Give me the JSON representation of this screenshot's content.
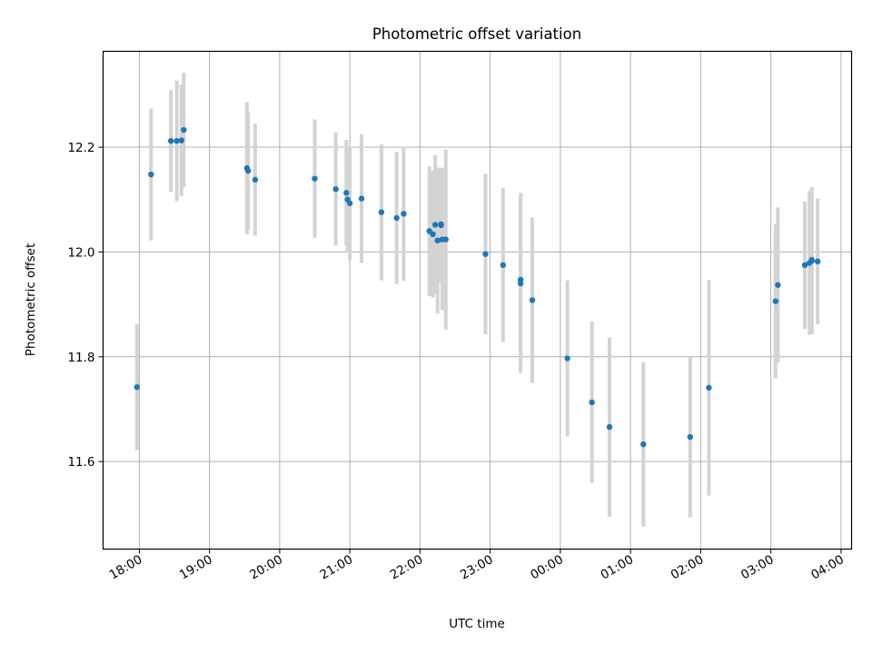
{
  "chart_data": {
    "type": "scatter",
    "title": "Photometric offset variation",
    "xlabel": "UTC time",
    "ylabel": "Photometric offset",
    "grid": true,
    "x_is_time": true,
    "xlim": [
      "17:29",
      "04:09"
    ],
    "ylim": [
      11.433,
      12.383
    ],
    "xticks": [
      "18:00",
      "19:00",
      "20:00",
      "21:00",
      "22:00",
      "23:00",
      "00:00",
      "01:00",
      "02:00",
      "03:00",
      "04:00"
    ],
    "yticks": [
      11.6,
      11.8,
      12.0,
      12.2
    ],
    "ytick_labels": [
      "11.6",
      "11.8",
      "12.0",
      "12.2"
    ],
    "marker_color": "#1f77b4",
    "errorbar_color": "#d3d3d3",
    "series": [
      {
        "x": [
          "17:58",
          "18:10",
          "18:27",
          "18:32",
          "18:36",
          "18:38",
          "19:32",
          "19:33",
          "19:39",
          "20:30",
          "20:48",
          "20:57",
          "20:58",
          "21:00",
          "21:10",
          "21:27",
          "21:40",
          "21:46",
          "22:08",
          "22:11",
          "22:13",
          "22:15",
          "22:18",
          "22:18",
          "22:19",
          "22:22",
          "22:56",
          "23:11",
          "23:26",
          "23:26",
          "23:36",
          "00:06",
          "00:27",
          "00:42",
          "01:11",
          "01:51",
          "02:07",
          "03:04",
          "03:06",
          "03:29",
          "03:33",
          "03:35",
          "03:35",
          "03:40"
        ],
        "y": [
          11.742,
          12.148,
          12.212,
          12.212,
          12.213,
          12.233,
          12.16,
          12.155,
          12.138,
          12.14,
          12.12,
          12.113,
          12.1,
          12.093,
          12.102,
          12.076,
          12.065,
          12.073,
          12.04,
          12.034,
          12.052,
          12.022,
          12.053,
          12.051,
          12.024,
          12.024,
          11.996,
          11.975,
          11.947,
          11.94,
          11.908,
          11.797,
          11.713,
          11.666,
          11.633,
          11.647,
          11.741,
          11.906,
          11.937,
          11.975,
          11.979,
          11.983,
          11.985,
          11.982
        ],
        "err": [
          0.12,
          0.126,
          0.097,
          0.115,
          0.106,
          0.109,
          0.126,
          0.113,
          0.107,
          0.113,
          0.108,
          0.101,
          0.101,
          0.108,
          0.123,
          0.13,
          0.126,
          0.128,
          0.124,
          0.121,
          0.133,
          0.139,
          0.108,
          0.108,
          0.135,
          0.172,
          0.153,
          0.147,
          0.166,
          0.171,
          0.158,
          0.149,
          0.154,
          0.171,
          0.157,
          0.153,
          0.206,
          0.147,
          0.148,
          0.122,
          0.137,
          0.14,
          0.139,
          0.12
        ]
      }
    ]
  }
}
